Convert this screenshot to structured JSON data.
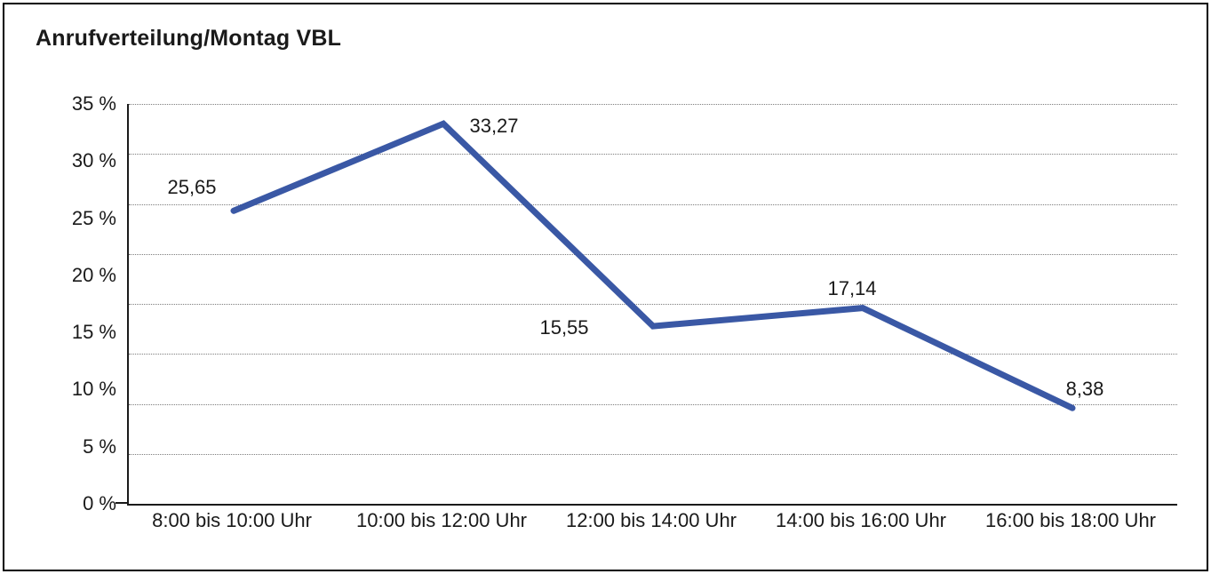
{
  "title": "Anrufverteilung/Montag VBL",
  "chart_data": {
    "type": "line",
    "title": "Anrufverteilung/Montag VBL",
    "categories": [
      "8:00 bis 10:00 Uhr",
      "10:00 bis 12:00 Uhr",
      "12:00 bis 14:00 Uhr",
      "14:00 bis 16:00 Uhr",
      "16:00 bis 18:00 Uhr"
    ],
    "values": [
      25.65,
      33.27,
      15.55,
      17.14,
      8.38
    ],
    "value_labels": [
      "25,65",
      "33,27",
      "15,55",
      "17,14",
      "8,38"
    ],
    "unit": "%",
    "y_tick_labels": [
      "0 %",
      "5 %",
      "10 %",
      "15 %",
      "20 %",
      "25 %",
      "30 %",
      "35 %"
    ],
    "y_tick_values": [
      0,
      5,
      10,
      15,
      20,
      25,
      30,
      35
    ],
    "ylim": [
      0,
      35
    ],
    "xlabel": "",
    "ylabel": "",
    "grid": true,
    "grid_divisions": 8,
    "legend": false,
    "line_color": "#3a58a5",
    "axis_color": "#1a1a1a",
    "grid_color": "#7d7d7d",
    "text_color": "#1a1a1a"
  }
}
